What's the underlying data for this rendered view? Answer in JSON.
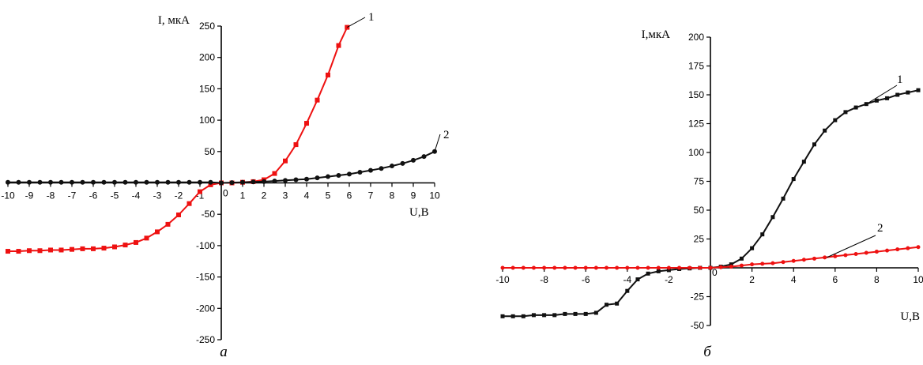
{
  "chart_data": [
    {
      "type": "line",
      "panel_label": "а",
      "xlabel": "U,B",
      "ylabel": "I, мкА",
      "xlim": [
        -10,
        10
      ],
      "ylim": [
        -250,
        250
      ],
      "x_ticks": [
        -10,
        -9,
        -8,
        -7,
        -6,
        -5,
        -4,
        -3,
        -2,
        -1,
        0,
        1,
        2,
        3,
        4,
        5,
        6,
        7,
        8,
        9,
        10
      ],
      "x_tick_labels": [
        "-10",
        "-9",
        "-8",
        "-7",
        "-6",
        "-5",
        "-4",
        "-3",
        "-2",
        "-1",
        "0",
        "1",
        "2",
        "3",
        "4",
        "5",
        "6",
        "7",
        "8",
        "9",
        "10"
      ],
      "y_ticks": [
        -250,
        -200,
        -150,
        -100,
        -50,
        50,
        100,
        150,
        200,
        250
      ],
      "y_tick_labels": [
        "-250",
        "-200",
        "-150",
        "-100",
        "-50",
        "50",
        "100",
        "150",
        "200",
        "250"
      ],
      "series": [
        {
          "name": "1",
          "color": "#ee1111",
          "x": [
            -10,
            -9.5,
            -9,
            -8.5,
            -8,
            -7.5,
            -7,
            -6.5,
            -6,
            -5.5,
            -5,
            -4.5,
            -4,
            -3.5,
            -3,
            -2.5,
            -2,
            -1.5,
            -1,
            -0.5,
            0,
            0.5,
            1,
            1.5,
            2,
            2.5,
            3,
            3.5,
            4,
            4.5,
            5,
            5.5,
            5.9
          ],
          "y": [
            -109,
            -109,
            -108,
            -108,
            -107,
            -107,
            -106,
            -105,
            -105,
            -104,
            -102,
            -99,
            -95,
            -88,
            -78,
            -66,
            -51,
            -33,
            -14,
            -3,
            0,
            0,
            1,
            2,
            5,
            15,
            35,
            61,
            95,
            132,
            172,
            219,
            248
          ]
        },
        {
          "name": "2",
          "color": "#111111",
          "x": [
            -10,
            -9.5,
            -9,
            -8.5,
            -8,
            -7.5,
            -7,
            -6.5,
            -6,
            -5.5,
            -5,
            -4.5,
            -4,
            -3.5,
            -3,
            -2.5,
            -2,
            -1.5,
            -1,
            -0.5,
            0,
            0.5,
            1,
            1.5,
            2,
            2.5,
            3,
            3.5,
            4,
            4.5,
            5,
            5.5,
            6,
            6.5,
            7,
            7.5,
            8,
            8.5,
            9,
            9.5,
            10
          ],
          "y": [
            1,
            1,
            1,
            1,
            1,
            1,
            1,
            1,
            1,
            1,
            1,
            1,
            1,
            1,
            1,
            1,
            1,
            1,
            1,
            1,
            0,
            0.5,
            1,
            1.5,
            2,
            3,
            4,
            5,
            6,
            8,
            10,
            12,
            14,
            17,
            20,
            23,
            27,
            31,
            36,
            42,
            50
          ]
        }
      ]
    },
    {
      "type": "line",
      "panel_label": "б",
      "xlabel": "U,B",
      "ylabel": "I,мкА",
      "xlim": [
        -10,
        10
      ],
      "ylim": [
        -50,
        200
      ],
      "x_ticks": [
        -10,
        -8,
        -6,
        -4,
        -2,
        0,
        2,
        4,
        6,
        8,
        10
      ],
      "x_tick_labels": [
        "-10",
        "-8",
        "-6",
        "-4",
        "-2",
        "0",
        "2",
        "4",
        "6",
        "8",
        "10"
      ],
      "y_ticks": [
        -50,
        -25,
        25,
        50,
        75,
        100,
        125,
        150,
        175,
        200
      ],
      "y_tick_labels": [
        "-50",
        "-25",
        "25",
        "50",
        "75",
        "100",
        "125",
        "150",
        "175",
        "200"
      ],
      "series": [
        {
          "name": "1",
          "color": "#111111",
          "x": [
            -10,
            -9.5,
            -9,
            -8.5,
            -8,
            -7.5,
            -7,
            -6.5,
            -6,
            -5.5,
            -5,
            -4.5,
            -4,
            -3.5,
            -3,
            -2.5,
            -2,
            -1.5,
            -1,
            -0.5,
            0,
            0.5,
            1,
            1.5,
            2,
            2.5,
            3,
            3.5,
            4,
            4.5,
            5,
            5.5,
            6,
            6.5,
            7,
            7.5,
            8,
            8.5,
            9,
            9.5,
            10
          ],
          "y": [
            -42,
            -42,
            -42,
            -41,
            -41,
            -41,
            -40,
            -40,
            -40,
            -39,
            -32,
            -31,
            -20,
            -10,
            -5,
            -3,
            -2,
            -1,
            -0.5,
            0,
            0,
            1,
            3,
            8,
            17,
            29,
            44,
            60,
            77,
            92,
            107,
            119,
            128,
            135,
            139,
            142,
            145,
            147,
            150,
            152,
            154
          ]
        },
        {
          "name": "2",
          "color": "#ee1111",
          "x": [
            -10,
            -9.5,
            -9,
            -8.5,
            -8,
            -7.5,
            -7,
            -6.5,
            -6,
            -5.5,
            -5,
            -4.5,
            -4,
            -3.5,
            -3,
            -2.5,
            -2,
            -1.5,
            -1,
            -0.5,
            0,
            0.5,
            1,
            1.5,
            2,
            2.5,
            3,
            3.5,
            4,
            4.5,
            5,
            5.5,
            6,
            6.5,
            7,
            7.5,
            8,
            8.5,
            9,
            9.5,
            10
          ],
          "y": [
            0,
            0,
            0,
            0,
            0,
            0,
            0,
            0,
            0,
            0,
            0,
            0,
            0,
            0,
            0,
            0,
            0,
            0,
            0,
            0,
            0,
            0.5,
            1,
            2,
            3,
            3.5,
            4,
            5,
            6,
            7,
            8,
            9,
            10,
            11,
            12,
            13,
            14,
            15,
            16,
            17,
            18
          ]
        }
      ]
    }
  ]
}
